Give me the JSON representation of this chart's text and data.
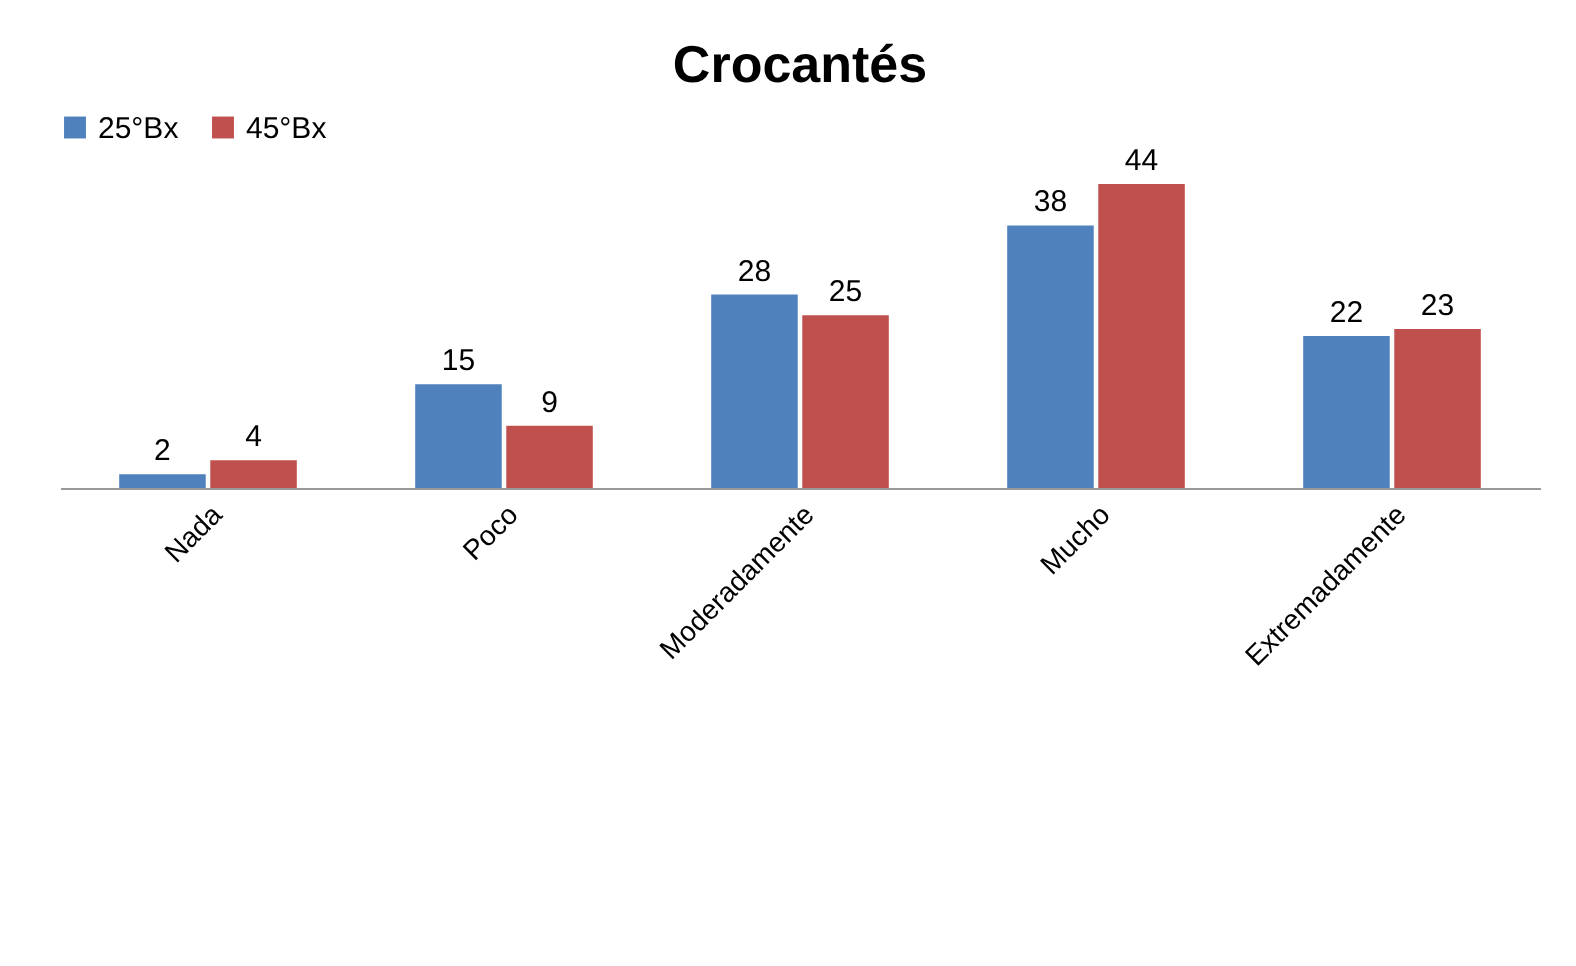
{
  "chart_data": {
    "type": "bar",
    "title": "Crocantés",
    "categories": [
      "Nada",
      "Poco",
      "Moderadamente",
      "Mucho",
      "Extremadamente"
    ],
    "series": [
      {
        "name": "25°Bx",
        "color": "#4f81bd",
        "values": [
          2,
          15,
          28,
          38,
          22
        ]
      },
      {
        "name": "45°Bx",
        "color": "#c0504d",
        "values": [
          4,
          9,
          25,
          44,
          23
        ]
      }
    ],
    "data_labels": true,
    "legend": "top"
  }
}
